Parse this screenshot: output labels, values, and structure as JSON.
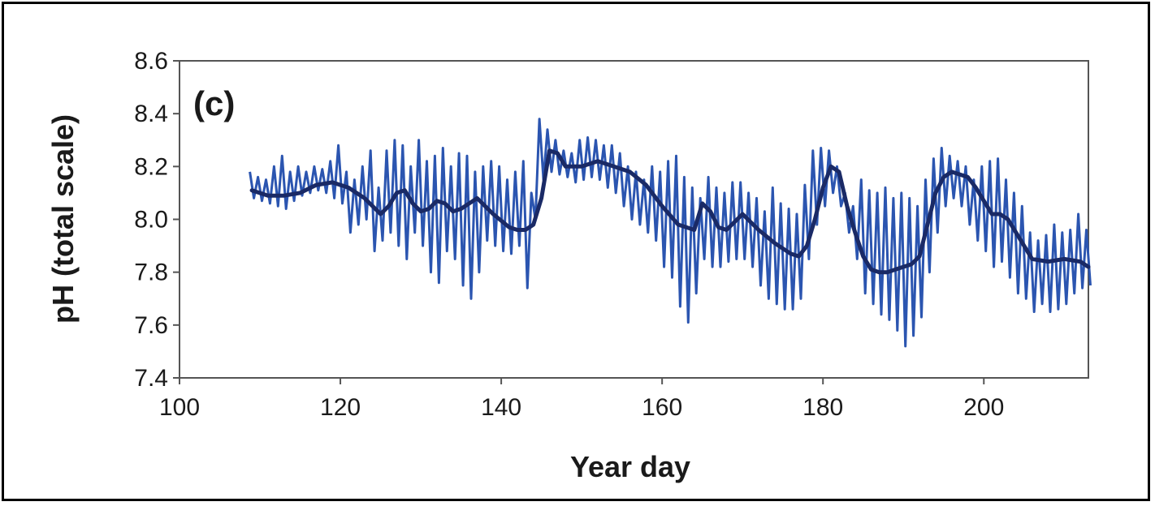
{
  "chart_data": {
    "type": "line",
    "panel_label": "(c)",
    "title": "",
    "xlabel": "Year day",
    "ylabel": "pH (total scale)",
    "xlim": [
      100,
      213
    ],
    "ylim": [
      7.4,
      8.6
    ],
    "x_ticks": [
      100,
      120,
      140,
      160,
      180,
      200
    ],
    "y_ticks": [
      7.4,
      7.6,
      7.8,
      8.0,
      8.2,
      8.4,
      8.6
    ],
    "x_tick_labels": [
      "100",
      "120",
      "140",
      "160",
      "180",
      "200"
    ],
    "y_tick_labels": [
      "7.4",
      "7.6",
      "7.8",
      "8.0",
      "8.2",
      "8.4",
      "8.6"
    ],
    "grid": false,
    "legend": "none",
    "colors": {
      "raw": "#2b55b0",
      "smoothed": "#1a2a66",
      "axes": "#555555"
    },
    "series": [
      {
        "style": "raw",
        "x": [
          109,
          110,
          111,
          112,
          113,
          114,
          115,
          116,
          117,
          118,
          119,
          120,
          121,
          122,
          123,
          124,
          125,
          126,
          127,
          128,
          129,
          130,
          131,
          132,
          133,
          134,
          135,
          136,
          137,
          138,
          139,
          140,
          141,
          142,
          143,
          144,
          145,
          146,
          147,
          148,
          149,
          150,
          151,
          152,
          153,
          154,
          155,
          156,
          157,
          158,
          159,
          160,
          161,
          162,
          163,
          164,
          165,
          166,
          167,
          168,
          169,
          170,
          171,
          172,
          173,
          174,
          175,
          176,
          177,
          178,
          179,
          180,
          181,
          182,
          183,
          184,
          185,
          186,
          187,
          188,
          189,
          190,
          191,
          192,
          193,
          194,
          195,
          196,
          197,
          198,
          199,
          200,
          201,
          202,
          203,
          204,
          205,
          206,
          207,
          208,
          209,
          210,
          211,
          212,
          213
        ],
        "y_low": [
          8.08,
          8.07,
          8.06,
          8.05,
          8.04,
          8.07,
          8.09,
          8.1,
          8.11,
          8.1,
          8.08,
          8.06,
          7.95,
          7.98,
          8.0,
          7.88,
          7.92,
          7.95,
          7.9,
          7.85,
          7.95,
          7.9,
          7.8,
          7.76,
          7.88,
          7.85,
          7.75,
          7.7,
          7.8,
          7.92,
          7.9,
          7.88,
          7.87,
          7.9,
          7.74,
          8.0,
          8.15,
          8.18,
          8.17,
          8.16,
          8.14,
          8.15,
          8.16,
          8.15,
          8.12,
          8.1,
          8.05,
          8.0,
          7.98,
          7.95,
          7.92,
          7.82,
          7.78,
          7.67,
          7.61,
          7.72,
          7.85,
          7.82,
          7.82,
          7.84,
          7.85,
          7.85,
          7.82,
          7.75,
          7.7,
          7.68,
          7.66,
          7.66,
          7.7,
          7.85,
          7.98,
          8.05,
          8.1,
          8.05,
          7.95,
          7.85,
          7.72,
          7.68,
          7.64,
          7.62,
          7.58,
          7.52,
          7.56,
          7.63,
          7.8,
          7.95,
          8.05,
          8.08,
          8.05,
          7.98,
          7.92,
          7.88,
          7.82,
          7.84,
          7.78,
          7.72,
          7.7,
          7.65,
          7.68,
          7.65,
          7.66,
          7.68,
          7.72,
          7.74,
          7.75
        ],
        "y_high": [
          8.18,
          8.16,
          8.15,
          8.2,
          8.24,
          8.18,
          8.2,
          8.18,
          8.2,
          8.19,
          8.22,
          8.28,
          8.18,
          8.15,
          8.2,
          8.26,
          8.12,
          8.26,
          8.3,
          8.28,
          8.2,
          8.3,
          8.22,
          8.24,
          8.27,
          8.2,
          8.25,
          8.24,
          8.18,
          8.2,
          8.22,
          8.2,
          8.15,
          8.18,
          8.22,
          8.1,
          8.38,
          8.34,
          8.3,
          8.26,
          8.25,
          8.3,
          8.31,
          8.3,
          8.28,
          8.28,
          8.25,
          8.2,
          8.18,
          8.15,
          8.2,
          8.18,
          8.22,
          8.24,
          8.16,
          8.12,
          8.08,
          8.16,
          8.12,
          8.1,
          8.14,
          8.14,
          8.1,
          8.08,
          8.03,
          8.12,
          8.06,
          8.04,
          8.02,
          8.13,
          8.26,
          8.27,
          8.26,
          8.2,
          8.1,
          8.05,
          8.15,
          8.11,
          8.1,
          8.12,
          8.08,
          8.1,
          8.08,
          8.05,
          8.15,
          8.23,
          8.27,
          8.24,
          8.22,
          8.2,
          8.15,
          8.2,
          8.22,
          8.23,
          8.15,
          8.1,
          8.05,
          7.95,
          7.92,
          7.94,
          7.98,
          7.95,
          7.96,
          8.02,
          7.96
        ]
      },
      {
        "style": "smoothed",
        "x": [
          109,
          111,
          113,
          115,
          117,
          119,
          121,
          123,
          125,
          126,
          127,
          128,
          129,
          130,
          131,
          132,
          133,
          134,
          135,
          137,
          139,
          141,
          142,
          143,
          144,
          145,
          146,
          147,
          148,
          150,
          152,
          154,
          156,
          158,
          160,
          162,
          164,
          165,
          166,
          167,
          168,
          169,
          170,
          172,
          174,
          176,
          177,
          178,
          179,
          180,
          181,
          182,
          183,
          184,
          185,
          186,
          187,
          188,
          189,
          190,
          191,
          192,
          193,
          194,
          195,
          196,
          197,
          198,
          199,
          200,
          201,
          202,
          203,
          204,
          205,
          206,
          208,
          210,
          212,
          213
        ],
        "y": [
          8.11,
          8.09,
          8.09,
          8.1,
          8.13,
          8.14,
          8.12,
          8.08,
          8.02,
          8.05,
          8.1,
          8.11,
          8.06,
          8.03,
          8.04,
          8.07,
          8.06,
          8.03,
          8.04,
          8.08,
          8.02,
          7.97,
          7.96,
          7.96,
          7.98,
          8.08,
          8.26,
          8.25,
          8.2,
          8.2,
          8.22,
          8.2,
          8.18,
          8.13,
          8.05,
          7.98,
          7.96,
          8.06,
          8.03,
          7.97,
          7.96,
          7.99,
          8.02,
          7.96,
          7.91,
          7.87,
          7.86,
          7.9,
          8.0,
          8.12,
          8.2,
          8.18,
          8.05,
          7.95,
          7.86,
          7.81,
          7.8,
          7.8,
          7.81,
          7.82,
          7.83,
          7.86,
          7.98,
          8.1,
          8.16,
          8.18,
          8.17,
          8.16,
          8.12,
          8.07,
          8.02,
          8.02,
          8.0,
          7.95,
          7.9,
          7.85,
          7.84,
          7.85,
          7.84,
          7.82
        ]
      }
    ]
  }
}
